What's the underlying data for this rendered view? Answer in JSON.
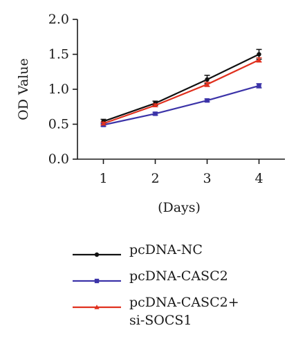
{
  "chart_data": {
    "type": "line",
    "title": "",
    "xlabel": "(Days)",
    "ylabel": "OD Value",
    "x": [
      1,
      2,
      3,
      4
    ],
    "x_tick_labels": [
      "1",
      "2",
      "3",
      "4"
    ],
    "xlim": [
      0.5,
      4.5
    ],
    "ylim": [
      0.0,
      2.0
    ],
    "y_ticks": [
      0.0,
      0.5,
      1.0,
      1.5,
      2.0
    ],
    "y_tick_labels": [
      "0.0",
      "0.5",
      "1.0",
      "1.5",
      "2.0"
    ],
    "grid": false,
    "legend_position": "bottom",
    "series": [
      {
        "name": "pcDNA-NC",
        "color": "#111111",
        "marker": "circle",
        "values": [
          0.54,
          0.8,
          1.14,
          1.5
        ],
        "errors": [
          0.03,
          0.03,
          0.06,
          0.07
        ]
      },
      {
        "name": "pcDNA-CASC2",
        "color": "#3b33a8",
        "marker": "square",
        "values": [
          0.49,
          0.65,
          0.84,
          1.05
        ],
        "errors": [
          0.02,
          0.02,
          0.02,
          0.03
        ]
      },
      {
        "name": "pcDNA-CASC2+\nsi-SOCS1",
        "color": "#e0301e",
        "marker": "triangle",
        "values": [
          0.51,
          0.77,
          1.07,
          1.42
        ],
        "errors": [
          0.02,
          0.02,
          0.03,
          0.03
        ]
      }
    ]
  }
}
